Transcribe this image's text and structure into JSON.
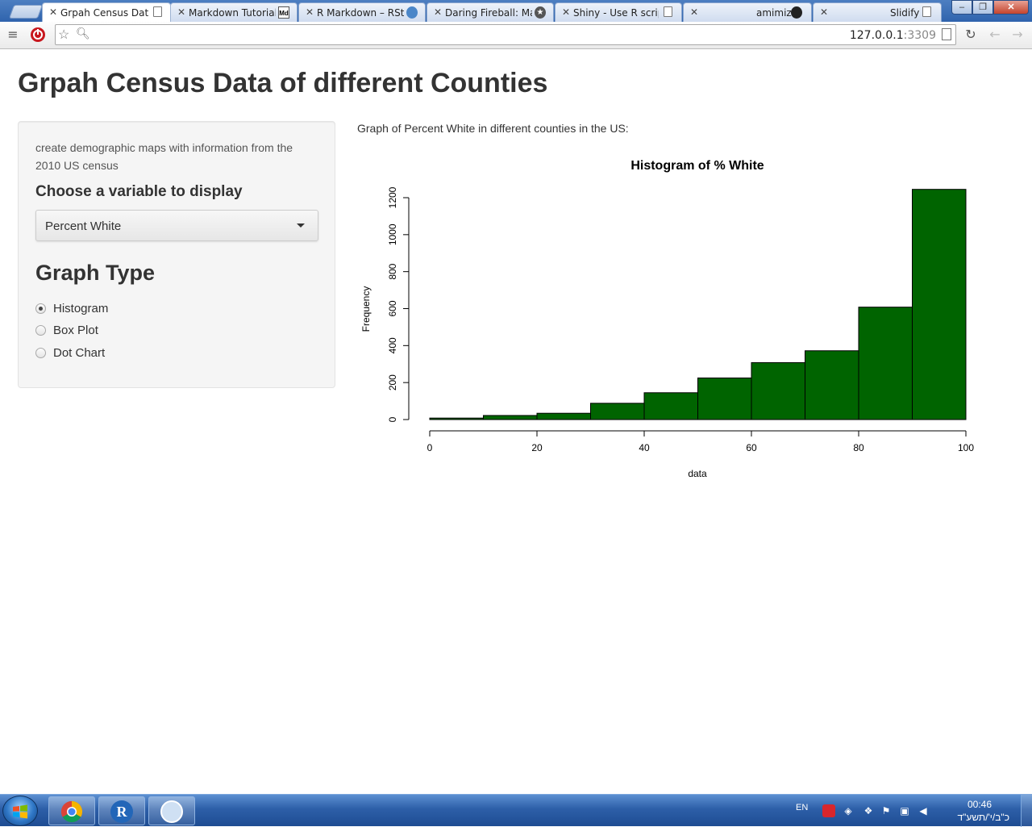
{
  "browser": {
    "tabs": [
      {
        "title": "Grpah Census Data",
        "favicon": "page-icon",
        "active": true
      },
      {
        "title": "Markdown Tutorial",
        "favicon": "md-icon",
        "active": false
      },
      {
        "title": "R Markdown – RStu",
        "favicon": "rstudio-icon",
        "active": false
      },
      {
        "title": "Daring Fireball: Mar",
        "favicon": "star-icon",
        "active": false
      },
      {
        "title": "Shiny - Use R scripts",
        "favicon": "page-icon",
        "active": false
      },
      {
        "title": "amimiz",
        "favicon": "github-icon",
        "active": false
      },
      {
        "title": "Slidify",
        "favicon": "page-icon",
        "active": false
      }
    ],
    "md_favicon_text": "Md",
    "url_host": "127.0.0.1",
    "url_port": ":3309"
  },
  "page": {
    "title": "Grpah Census Data of different Counties",
    "sidebar": {
      "intro": "create demographic maps with information from the 2010 US census",
      "variable_label": "Choose a variable to display",
      "variable_selected": "Percent White",
      "graph_type_heading": "Graph Type",
      "graph_types": [
        {
          "label": "Histogram",
          "checked": true
        },
        {
          "label": "Box Plot",
          "checked": false
        },
        {
          "label": "Dot Chart",
          "checked": false
        }
      ]
    },
    "graph_caption": "Graph of Percent White in different counties in the US:"
  },
  "chart_data": {
    "type": "bar",
    "title": "Histogram of % White",
    "xlabel": "data",
    "ylabel": "Frequency",
    "bin_edges": [
      0,
      10,
      20,
      30,
      40,
      50,
      60,
      70,
      80,
      90,
      100
    ],
    "values": [
      8,
      22,
      34,
      88,
      145,
      225,
      308,
      372,
      608,
      1245
    ],
    "xlim": [
      0,
      100
    ],
    "ylim": [
      0,
      1200
    ],
    "x_ticks": [
      "0",
      "20",
      "40",
      "60",
      "80",
      "100"
    ],
    "y_ticks": [
      "0",
      "200",
      "400",
      "600",
      "800",
      "1000",
      "1200"
    ],
    "bar_color": "#006400",
    "grid": false
  },
  "taskbar": {
    "apps": [
      "chrome-icon",
      "r-icon",
      "octocat-icon"
    ],
    "r_label": "R",
    "lang": "EN",
    "time": "00:46",
    "date": "כ\"ב/י'/תשע\"ד"
  }
}
